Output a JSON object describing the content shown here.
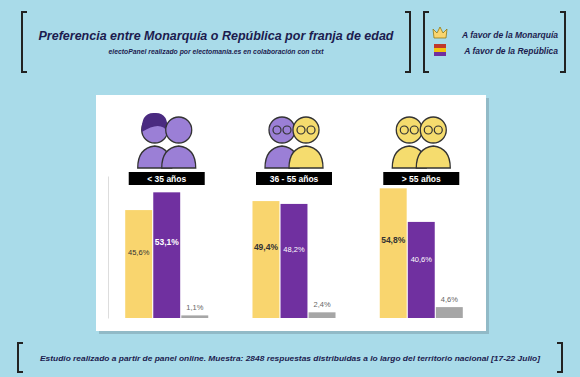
{
  "chart_data": {
    "type": "bar",
    "title": "Preferencia entre Monarquía o República por franja de edad",
    "subtitle": "electoPanel realizado por electomania.es en colaboración con ctxt",
    "footnote": "Estudio realizado a partir de panel online. Muestra: 2848 respuestas distribuidas a lo largo del territorio nacional [17-22 Julio]",
    "categories": [
      "< 35 años",
      "36 - 55 años",
      "> 55 años"
    ],
    "series": [
      {
        "name": "A favor de la Monarquía",
        "color": "#f9d56e",
        "values": [
          45.6,
          49.4,
          54.8
        ],
        "value_labels": [
          "45,6%",
          "49,4%",
          "54,8%"
        ]
      },
      {
        "name": "A favor de la República",
        "color": "#7030a0",
        "values": [
          53.1,
          48.2,
          40.6
        ],
        "value_labels": [
          "53,1%",
          "48,2%",
          "40,6%"
        ]
      },
      {
        "color": "#a6a6a6",
        "values": [
          1.1,
          2.4,
          4.6
        ],
        "value_labels": [
          "1,1%",
          "2,4%",
          "4,6%"
        ]
      }
    ],
    "ylim": [
      0,
      60
    ],
    "tick_labels": "x",
    "data_labels": true,
    "legend": "top-right"
  }
}
